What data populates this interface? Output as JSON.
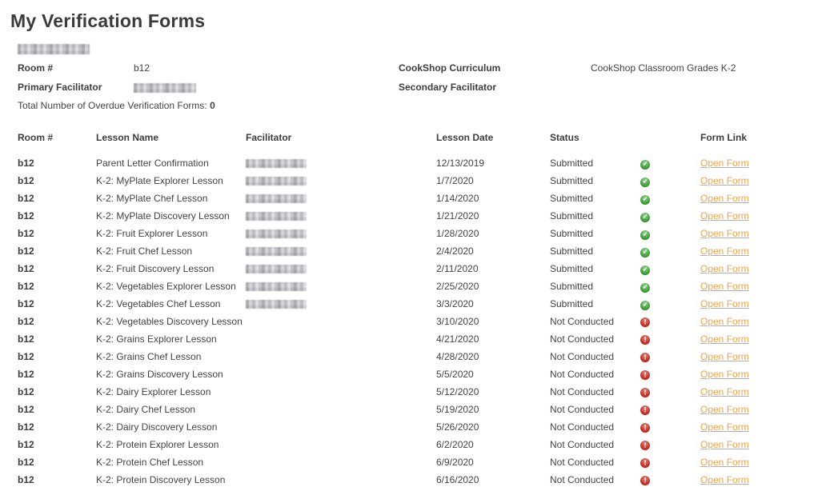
{
  "page": {
    "title": "My Verification Forms"
  },
  "info": {
    "school_name_redacted": true,
    "room_label": "Room #",
    "room_value": "b12",
    "curriculum_label": "CookShop Curriculum",
    "curriculum_value": "CookShop Classroom Grades K-2",
    "primary_facilitator_label": "Primary Facilitator",
    "primary_facilitator_redacted": true,
    "secondary_facilitator_label": "Secondary Facilitator",
    "secondary_facilitator_value": "",
    "overdue_label": "Total Number of Overdue Verification Forms:",
    "overdue_count": "0"
  },
  "table": {
    "headers": {
      "room": "Room #",
      "lesson": "Lesson Name",
      "facilitator": "Facilitator",
      "date": "Lesson Date",
      "status": "Status",
      "form_link": "Form Link"
    },
    "open_form_label": "Open Form",
    "status_glyphs": {
      "Submitted": "check",
      "Not Conducted": "exclamation"
    },
    "rows": [
      {
        "room": "b12",
        "lesson": "Parent Letter Confirmation",
        "facilitator_redacted": true,
        "date": "12/13/2019",
        "status": "Submitted"
      },
      {
        "room": "b12",
        "lesson": "K-2: MyPlate Explorer Lesson",
        "facilitator_redacted": true,
        "date": "1/7/2020",
        "status": "Submitted"
      },
      {
        "room": "b12",
        "lesson": "K-2: MyPlate Chef Lesson",
        "facilitator_redacted": true,
        "date": "1/14/2020",
        "status": "Submitted"
      },
      {
        "room": "b12",
        "lesson": "K-2: MyPlate Discovery Lesson",
        "facilitator_redacted": true,
        "date": "1/21/2020",
        "status": "Submitted"
      },
      {
        "room": "b12",
        "lesson": "K-2: Fruit Explorer Lesson",
        "facilitator_redacted": true,
        "date": "1/28/2020",
        "status": "Submitted"
      },
      {
        "room": "b12",
        "lesson": "K-2: Fruit Chef Lesson",
        "facilitator_redacted": true,
        "date": "2/4/2020",
        "status": "Submitted"
      },
      {
        "room": "b12",
        "lesson": "K-2: Fruit Discovery Lesson",
        "facilitator_redacted": true,
        "date": "2/11/2020",
        "status": "Submitted"
      },
      {
        "room": "b12",
        "lesson": "K-2: Vegetables Explorer Lesson",
        "facilitator_redacted": true,
        "date": "2/25/2020",
        "status": "Submitted"
      },
      {
        "room": "b12",
        "lesson": "K-2: Vegetables Chef Lesson",
        "facilitator_redacted": true,
        "date": "3/3/2020",
        "status": "Submitted"
      },
      {
        "room": "b12",
        "lesson": "K-2: Vegetables Discovery Lesson",
        "facilitator_redacted": false,
        "date": "3/10/2020",
        "status": "Not Conducted"
      },
      {
        "room": "b12",
        "lesson": "K-2: Grains Explorer Lesson",
        "facilitator_redacted": false,
        "date": "4/21/2020",
        "status": "Not Conducted"
      },
      {
        "room": "b12",
        "lesson": "K-2: Grains Chef Lesson",
        "facilitator_redacted": false,
        "date": "4/28/2020",
        "status": "Not Conducted"
      },
      {
        "room": "b12",
        "lesson": "K-2: Grains Discovery Lesson",
        "facilitator_redacted": false,
        "date": "5/5/2020",
        "status": "Not Conducted"
      },
      {
        "room": "b12",
        "lesson": "K-2: Dairy Explorer Lesson",
        "facilitator_redacted": false,
        "date": "5/12/2020",
        "status": "Not Conducted"
      },
      {
        "room": "b12",
        "lesson": "K-2: Dairy Chef Lesson",
        "facilitator_redacted": false,
        "date": "5/19/2020",
        "status": "Not Conducted"
      },
      {
        "room": "b12",
        "lesson": "K-2: Dairy Discovery Lesson",
        "facilitator_redacted": false,
        "date": "5/26/2020",
        "status": "Not Conducted"
      },
      {
        "room": "b12",
        "lesson": "K-2: Protein Explorer Lesson",
        "facilitator_redacted": false,
        "date": "6/2/2020",
        "status": "Not Conducted"
      },
      {
        "room": "b12",
        "lesson": "K-2: Protein Chef Lesson",
        "facilitator_redacted": false,
        "date": "6/9/2020",
        "status": "Not Conducted"
      },
      {
        "room": "b12",
        "lesson": "K-2: Protein Discovery Lesson",
        "facilitator_redacted": false,
        "date": "6/16/2020",
        "status": "Not Conducted"
      }
    ]
  },
  "colors": {
    "link_orange": "#f0a24b",
    "submitted_green": "#4aa546",
    "overdue_red": "#c6392f",
    "heading_gray": "#3b3b3b"
  }
}
